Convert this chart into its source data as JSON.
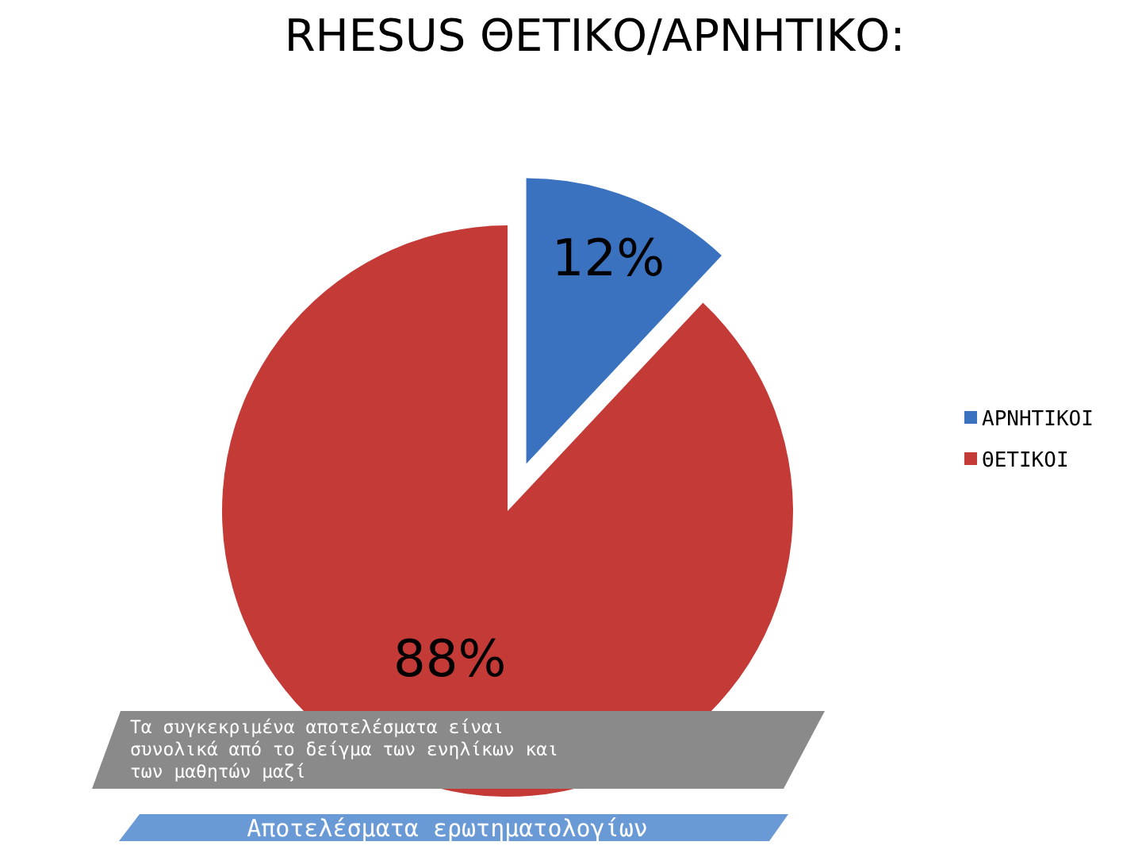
{
  "chart_data": {
    "type": "pie",
    "title": "RHESUS ΘΕΤΙΚΟ/ΑΡΝΗΤΙΚΟ:",
    "categories": [
      "ΑΡΝΗΤΙΚΟΙ",
      "ΘΕΤΙΚΟΙ"
    ],
    "values": [
      12,
      88
    ],
    "colors": [
      "#3a72c0",
      "#c43a37"
    ],
    "value_labels": [
      "12%",
      "88%"
    ],
    "legend": "right",
    "annotations": [
      "Τα συγκεκριμένα αποτελέσματα είναι συνολικά από το δείγμα των ενηλίκων και των μαθητών μαζί",
      "Αποτελέσματα ερωτηματολογίων"
    ]
  }
}
